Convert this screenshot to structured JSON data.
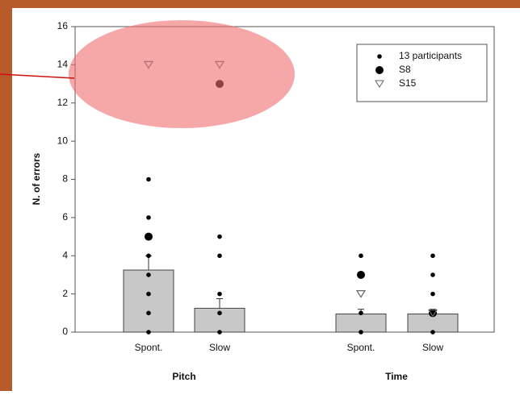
{
  "chart_data": {
    "type": "bar",
    "ylabel": "N. of errors",
    "groups": [
      "Pitch",
      "Time"
    ],
    "categories": [
      "Spont.",
      "Slow",
      "Spont.",
      "Slow"
    ],
    "values": [
      3.25,
      1.25,
      0.95,
      0.95
    ],
    "errors": [
      0.75,
      0.5,
      0.25,
      0.25
    ],
    "color": "#c8c8c8",
    "series": [
      {
        "name": "13 participants",
        "marker": "small-dot",
        "color": "#000000",
        "values": [
          [
            8,
            6,
            4,
            3,
            2,
            1,
            0
          ],
          [
            5,
            4,
            2,
            1,
            0
          ],
          [
            4,
            1,
            0
          ],
          [
            4,
            3,
            2,
            0
          ]
        ]
      },
      {
        "name": "S8",
        "marker": "large-dot",
        "color": "#000000",
        "values": [
          5,
          13,
          3,
          1
        ]
      },
      {
        "name": "S15",
        "marker": "triangle",
        "color": "#666666",
        "values": [
          14,
          14,
          2,
          1
        ]
      }
    ],
    "ylim": [
      0,
      16
    ],
    "yticks": [
      0,
      2,
      4,
      6,
      8,
      10,
      12,
      14,
      16
    ],
    "legend": "top-right"
  }
}
